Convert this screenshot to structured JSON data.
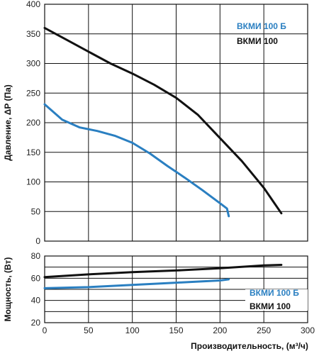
{
  "chart_data": [
    {
      "type": "line",
      "ylabel": "Давление, ΔP (Па)",
      "xlabel": "",
      "xlim": [
        0,
        300
      ],
      "ylim": [
        0,
        400
      ],
      "x_ticks": [
        0,
        50,
        100,
        150,
        200,
        250,
        300
      ],
      "y_ticks": [
        0,
        50,
        100,
        150,
        200,
        250,
        300,
        350,
        400
      ],
      "grid": true,
      "legend_position": "top-right",
      "series": [
        {
          "name": "ВКМИ 100 Б",
          "color": "#2a7fc1",
          "x": [
            0,
            20,
            40,
            60,
            80,
            100,
            120,
            140,
            160,
            180,
            200,
            208,
            210
          ],
          "y": [
            231,
            205,
            192,
            186,
            178,
            166,
            148,
            127,
            107,
            86,
            64,
            55,
            42
          ]
        },
        {
          "name": "ВКМИ 100",
          "color": "#111111",
          "x": [
            0,
            25,
            50,
            75,
            100,
            125,
            150,
            175,
            200,
            225,
            250,
            270
          ],
          "y": [
            360,
            340,
            320,
            300,
            283,
            264,
            242,
            213,
            174,
            135,
            90,
            47
          ]
        }
      ]
    },
    {
      "type": "line",
      "ylabel": "Мощность, (Вт)",
      "xlabel": "Производительность, (м³/ч)",
      "xlim": [
        0,
        300
      ],
      "ylim": [
        20,
        80
      ],
      "x_ticks": [
        0,
        50,
        100,
        150,
        200,
        250,
        300
      ],
      "y_ticks": [
        20,
        40,
        60,
        80
      ],
      "grid": true,
      "legend_position": "bottom-right",
      "series": [
        {
          "name": "ВКМИ 100 Б",
          "color": "#2a7fc1",
          "x": [
            0,
            50,
            100,
            150,
            200,
            210
          ],
          "y": [
            51,
            52,
            54,
            56,
            58,
            59
          ]
        },
        {
          "name": "ВКМИ 100",
          "color": "#111111",
          "x": [
            0,
            50,
            100,
            150,
            200,
            250,
            270
          ],
          "y": [
            61,
            63.5,
            65.5,
            67,
            69,
            71.5,
            72
          ]
        }
      ]
    }
  ]
}
